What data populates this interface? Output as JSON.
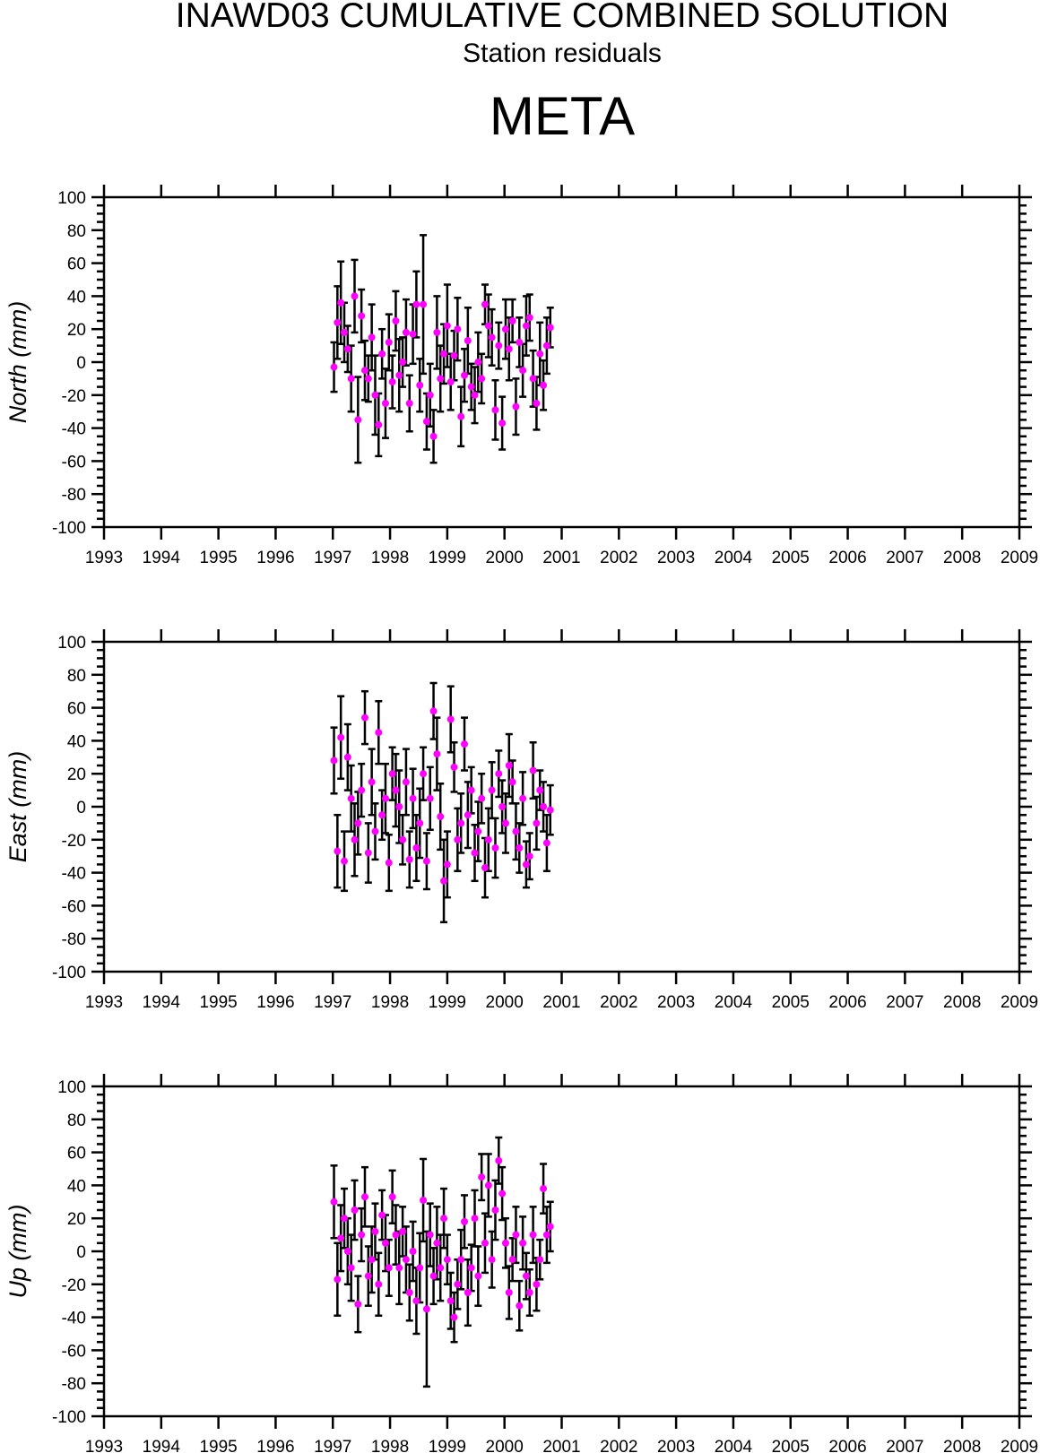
{
  "chart_data": {
    "type": "scatter",
    "title": "INAWD03 CUMULATIVE COMBINED SOLUTION",
    "subtitle": "Station residuals",
    "station": "META",
    "xlim": [
      1993,
      2009
    ],
    "xticks": [
      "1993",
      "1994",
      "1995",
      "1996",
      "1997",
      "1998",
      "1999",
      "2000",
      "2001",
      "2002",
      "2003",
      "2004",
      "2005",
      "2006",
      "2007",
      "2008",
      "2009"
    ],
    "ylim": [
      -100,
      100
    ],
    "yticks": [
      "-100",
      "-80",
      "-60",
      "-40",
      "-20",
      "0",
      "20",
      "40",
      "60",
      "80",
      "100"
    ],
    "marker_color": "#ff00ff",
    "errorbar_color": "#000000",
    "x": [
      1997.02,
      1997.08,
      1997.14,
      1997.2,
      1997.26,
      1997.32,
      1997.38,
      1997.44,
      1997.5,
      1997.56,
      1997.62,
      1997.68,
      1997.74,
      1997.8,
      1997.86,
      1997.92,
      1997.98,
      1998.04,
      1998.1,
      1998.16,
      1998.22,
      1998.28,
      1998.34,
      1998.4,
      1998.46,
      1998.52,
      1998.58,
      1998.64,
      1998.7,
      1998.76,
      1998.82,
      1998.88,
      1998.94,
      1999.0,
      1999.06,
      1999.12,
      1999.18,
      1999.24,
      1999.3,
      1999.36,
      1999.42,
      1999.48,
      1999.54,
      1999.6,
      1999.66,
      1999.72,
      1999.78,
      1999.84,
      1999.9,
      1999.96,
      2000.02,
      2000.08,
      2000.14,
      2000.2,
      2000.26,
      2000.32,
      2000.38,
      2000.44,
      2000.5,
      2000.56,
      2000.62,
      2000.68,
      2000.74,
      2000.8
    ],
    "panels": [
      {
        "ylabel": "North (mm)",
        "values": [
          -3,
          24,
          36,
          18,
          8,
          -10,
          40,
          -35,
          28,
          -5,
          -10,
          15,
          -20,
          -38,
          5,
          -25,
          12,
          -12,
          25,
          -8,
          0,
          18,
          -25,
          17,
          35,
          -14,
          35,
          -36,
          -20,
          -45,
          18,
          -10,
          5,
          22,
          -12,
          4,
          20,
          -33,
          -8,
          13,
          -15,
          -20,
          0,
          -10,
          35,
          22,
          15,
          -29,
          10,
          -37,
          20,
          8,
          25,
          -27,
          12,
          -5,
          22,
          27,
          -10,
          -25,
          5,
          -14,
          10,
          21
        ],
        "errors": [
          15,
          22,
          25,
          18,
          14,
          20,
          22,
          26,
          16,
          18,
          14,
          20,
          24,
          19,
          15,
          21,
          17,
          16,
          18,
          22,
          15,
          20,
          17,
          18,
          20,
          16,
          42,
          17,
          19,
          16,
          22,
          20,
          18,
          25,
          17,
          15,
          19,
          18,
          16,
          20,
          14,
          17,
          18,
          15,
          12,
          19,
          17,
          18,
          14,
          16,
          18,
          19,
          13,
          17,
          15,
          16,
          18,
          14,
          17,
          16,
          19,
          15,
          17,
          12
        ]
      },
      {
        "ylabel": "East (mm)",
        "values": [
          28,
          -27,
          42,
          -33,
          30,
          5,
          -20,
          -10,
          10,
          54,
          -28,
          15,
          -15,
          45,
          -5,
          5,
          -34,
          20,
          10,
          0,
          -20,
          15,
          -32,
          5,
          -25,
          -10,
          20,
          -33,
          5,
          58,
          32,
          -6,
          -45,
          -35,
          53,
          24,
          -20,
          -10,
          38,
          -5,
          10,
          -28,
          -15,
          5,
          -37,
          -20,
          10,
          -25,
          20,
          0,
          -10,
          25,
          15,
          -15,
          -25,
          5,
          -35,
          -30,
          22,
          -10,
          10,
          0,
          -22,
          -2
        ],
        "errors": [
          20,
          22,
          25,
          18,
          20,
          20,
          22,
          19,
          16,
          16,
          18,
          20,
          17,
          19,
          15,
          21,
          17,
          16,
          22,
          22,
          15,
          20,
          17,
          18,
          20,
          21,
          16,
          17,
          19,
          17,
          22,
          20,
          25,
          20,
          20,
          15,
          19,
          18,
          16,
          20,
          14,
          17,
          18,
          15,
          18,
          19,
          17,
          18,
          14,
          16,
          18,
          19,
          13,
          17,
          15,
          16,
          14,
          14,
          17,
          16,
          12,
          15,
          17,
          15
        ]
      },
      {
        "ylabel": "Up (mm)",
        "values": [
          30,
          -17,
          8,
          20,
          0,
          -10,
          25,
          -32,
          10,
          33,
          -15,
          -5,
          12,
          -20,
          22,
          5,
          -10,
          33,
          10,
          -10,
          12,
          -5,
          -25,
          0,
          -30,
          -10,
          31,
          -35,
          10,
          -15,
          5,
          -10,
          20,
          -5,
          -30,
          -40,
          -20,
          -5,
          18,
          -25,
          -10,
          20,
          -15,
          45,
          5,
          40,
          -5,
          25,
          55,
          35,
          5,
          -25,
          -5,
          10,
          -33,
          5,
          -15,
          -25,
          10,
          -20,
          -5,
          38,
          10,
          15
        ],
        "errors": [
          22,
          22,
          20,
          18,
          20,
          20,
          18,
          17,
          16,
          18,
          18,
          20,
          17,
          19,
          15,
          17,
          17,
          16,
          18,
          22,
          15,
          20,
          17,
          18,
          20,
          21,
          25,
          47,
          19,
          17,
          22,
          20,
          18,
          15,
          17,
          15,
          15,
          18,
          16,
          20,
          14,
          17,
          18,
          14,
          18,
          19,
          17,
          18,
          14,
          16,
          15,
          16,
          13,
          17,
          15,
          16,
          14,
          14,
          17,
          16,
          12,
          15,
          17,
          15
        ]
      }
    ]
  }
}
